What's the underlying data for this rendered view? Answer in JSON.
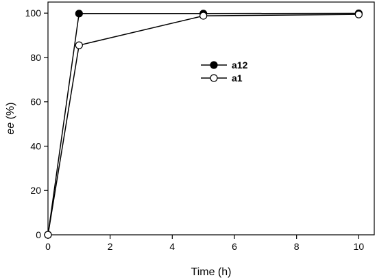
{
  "chart_data": {
    "type": "line",
    "title": "",
    "xlabel": "Time (h)",
    "ylabel_italic": "ee",
    "ylabel_rest": " (%)",
    "xlim": [
      0,
      10.5
    ],
    "ylim": [
      0,
      105
    ],
    "xticks": [
      0,
      2,
      4,
      6,
      8,
      10
    ],
    "yticks": [
      0,
      20,
      40,
      60,
      80,
      100
    ],
    "grid": false,
    "legend_position": "upper-center",
    "series": [
      {
        "name": "a12",
        "marker": "filled-circle",
        "x": [
          0,
          1,
          5,
          10
        ],
        "y": [
          0,
          99.8,
          99.8,
          99.9
        ]
      },
      {
        "name": "a1",
        "marker": "open-circle",
        "x": [
          0,
          1,
          5,
          10
        ],
        "y": [
          0,
          85.5,
          98.8,
          99.4
        ]
      }
    ],
    "colors": {
      "line": "#000000",
      "filled_marker": "#000000",
      "open_marker_fill": "#ffffff"
    }
  }
}
